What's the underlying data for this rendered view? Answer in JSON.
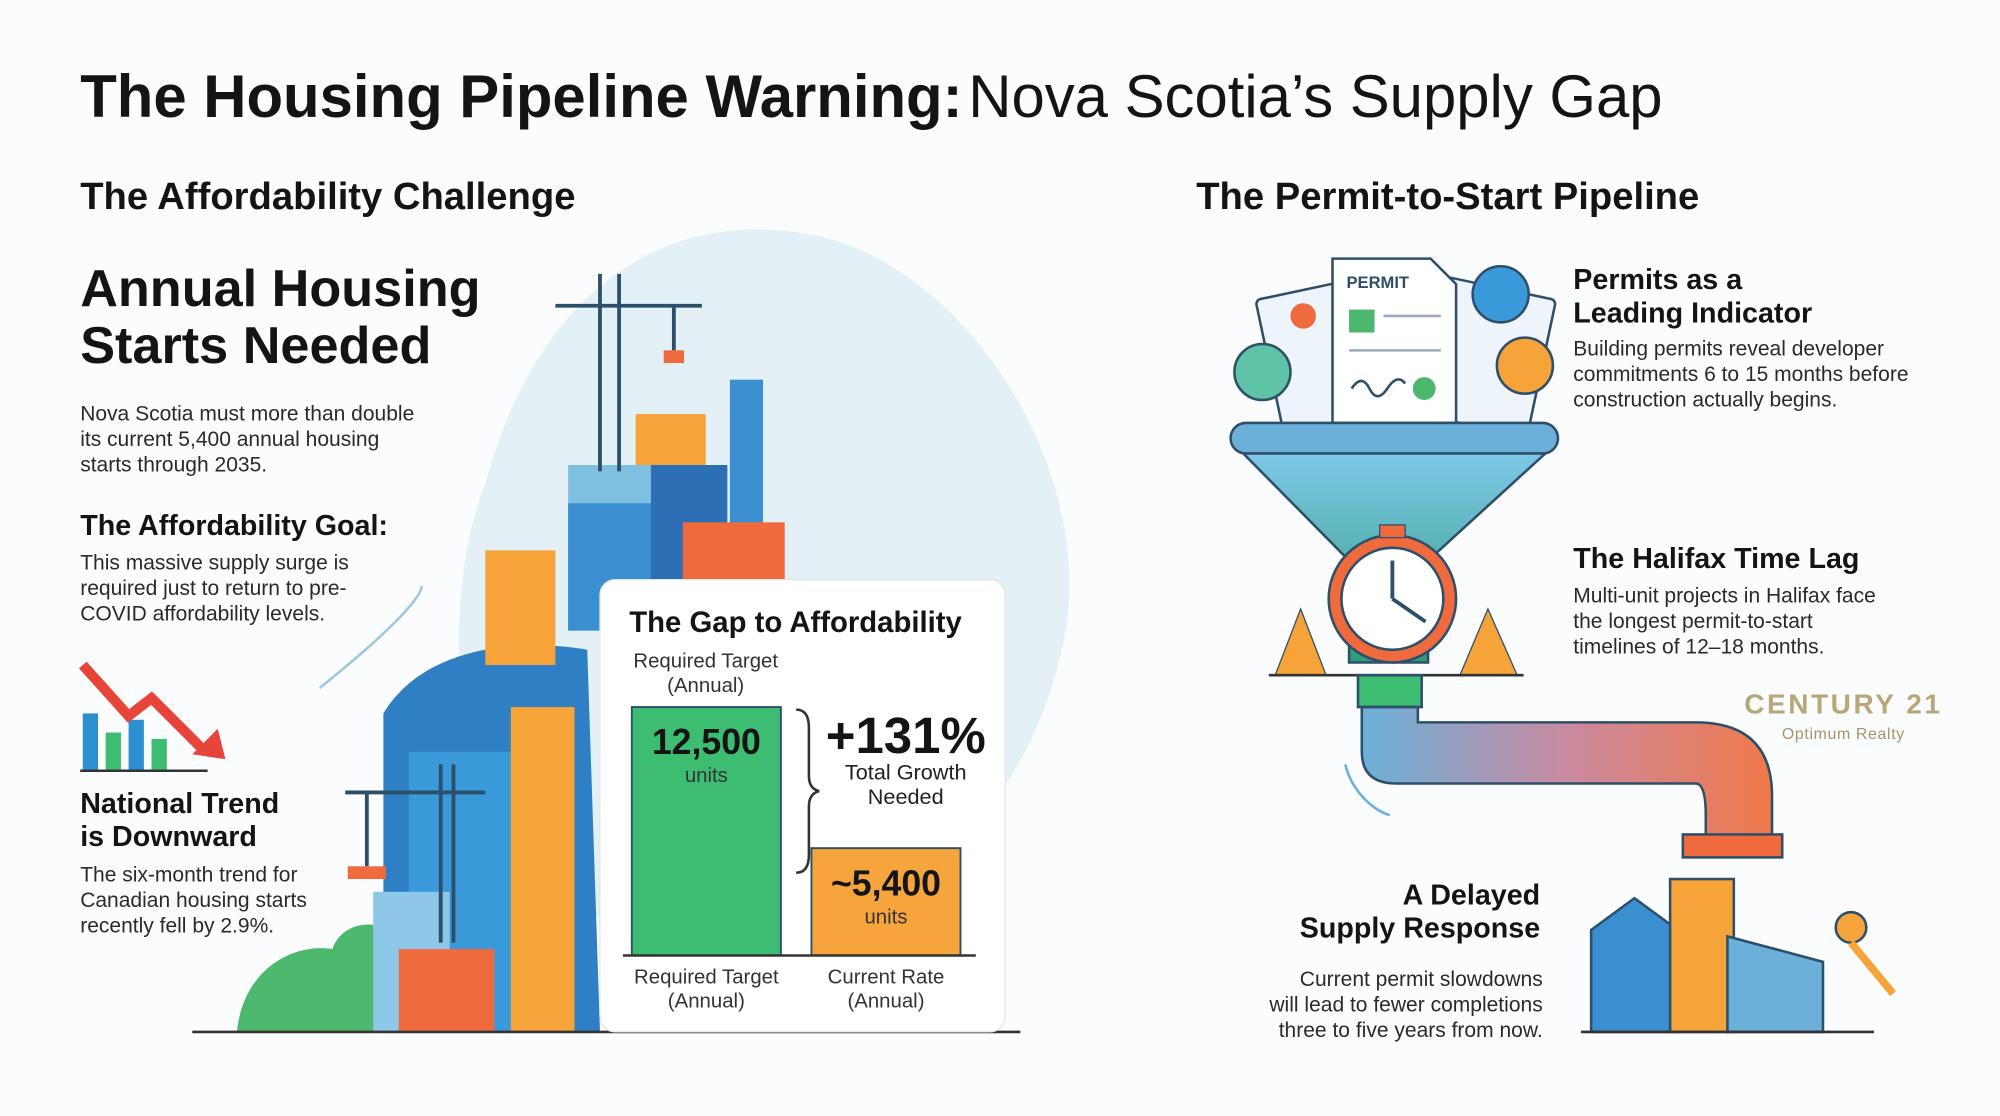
{
  "title": {
    "bold": "The Housing Pipeline Warning:",
    "regular": "Nova Scotia’s Supply Gap"
  },
  "left": {
    "heading": "The Affordability Challenge",
    "feature_title": [
      "Annual Housing",
      "Starts Needed"
    ],
    "feature_text": [
      "Nova Scotia must more than double",
      "its current 5,400 annual housing",
      "starts through 2035."
    ],
    "goal_title": "The Affordability Goal:",
    "goal_text": [
      "This massive supply surge is",
      "required just to return to pre-",
      "COVID affordability levels."
    ],
    "trend_title": [
      "National Trend",
      "is Downward"
    ],
    "trend_text": [
      "The six-month trend for",
      "Canadian housing starts",
      "recently fell by 2.9%."
    ]
  },
  "chart_data": {
    "type": "bar",
    "title": "The Gap to Affordability",
    "categories": [
      "Required Target (Annual)",
      "Current Rate (Annual)"
    ],
    "values": [
      12500,
      5400
    ],
    "value_labels": [
      "12,500",
      "~5,400"
    ],
    "value_unit": "units",
    "colors": [
      "#3dbd72",
      "#f5a53b"
    ],
    "annotation": {
      "text": "+131%",
      "note": "Total Growth Needed"
    }
  },
  "right": {
    "heading": "The Permit-to-Start Pipeline",
    "permit_label": "PERMIT",
    "indicator_title": [
      "Permits as a",
      "Leading Indicator"
    ],
    "indicator_text": [
      "Building permits reveal developer",
      "commitments 6 to 15 months before",
      "construction actually begins."
    ],
    "lag_title": "The Halifax Time Lag",
    "lag_text": [
      "Multi-unit projects in Halifax face",
      "the longest permit-to-start",
      "timelines of 12–18 months."
    ],
    "delay_title": [
      "A Delayed",
      "Supply Response"
    ],
    "delay_text": [
      "Current permit slowdowns",
      "will lead to fewer completions",
      "three to five years from now."
    ]
  },
  "logo": {
    "name": "CENTURY 21",
    "tagline": "Optimum Realty"
  }
}
